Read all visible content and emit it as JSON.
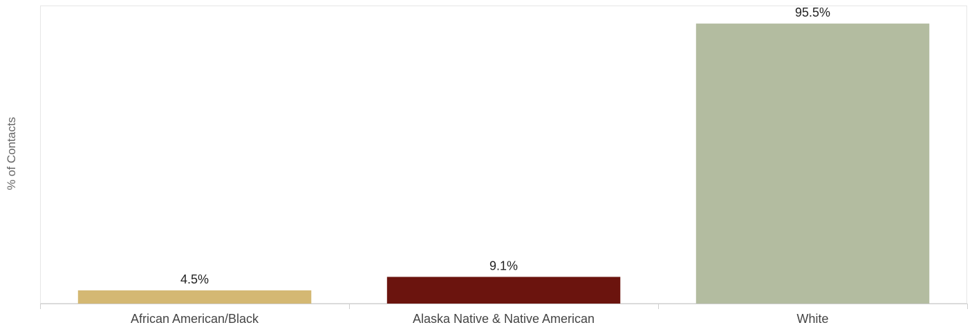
{
  "chart_data": {
    "type": "bar",
    "title": "",
    "xlabel": "",
    "ylabel": "% of Contacts",
    "categories": [
      "African American/Black",
      "Alaska Native & Native American",
      "White"
    ],
    "values": [
      4.5,
      9.1,
      95.5
    ],
    "data_labels": [
      "4.5%",
      "9.1%",
      "95.5%"
    ],
    "colors": [
      "#d4b873",
      "#6b140e",
      "#b3bca0"
    ],
    "ylim": [
      0,
      100
    ],
    "grid": false,
    "legend": "none"
  }
}
